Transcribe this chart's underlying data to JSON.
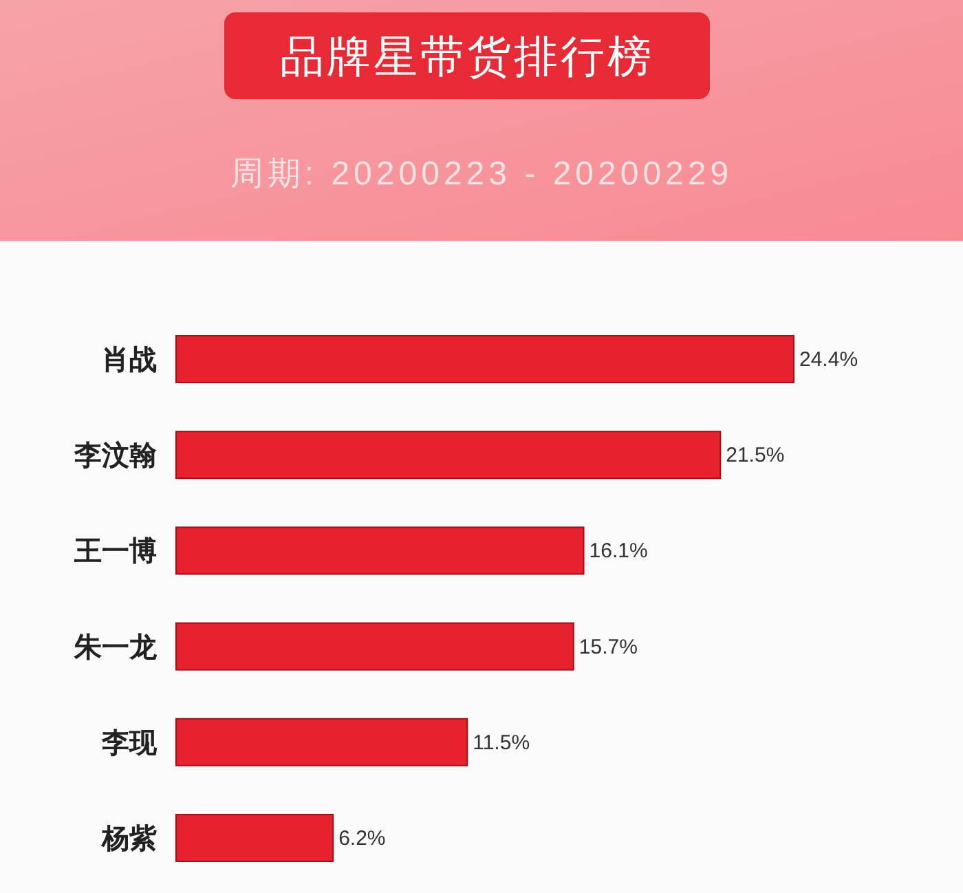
{
  "chart_data": {
    "type": "bar",
    "orientation": "horizontal",
    "title": "品牌星带货排行榜",
    "subtitle": "周期: 20200223 - 20200229",
    "categories": [
      "肖战",
      "李汶翰",
      "王一博",
      "朱一龙",
      "李现",
      "杨紫"
    ],
    "values": [
      24.4,
      21.5,
      16.1,
      15.7,
      11.5,
      6.2
    ],
    "value_labels": [
      "24.4%",
      "21.5%",
      "16.1%",
      "15.7%",
      "11.5%",
      "6.2%"
    ],
    "color": "#e8212f"
  }
}
